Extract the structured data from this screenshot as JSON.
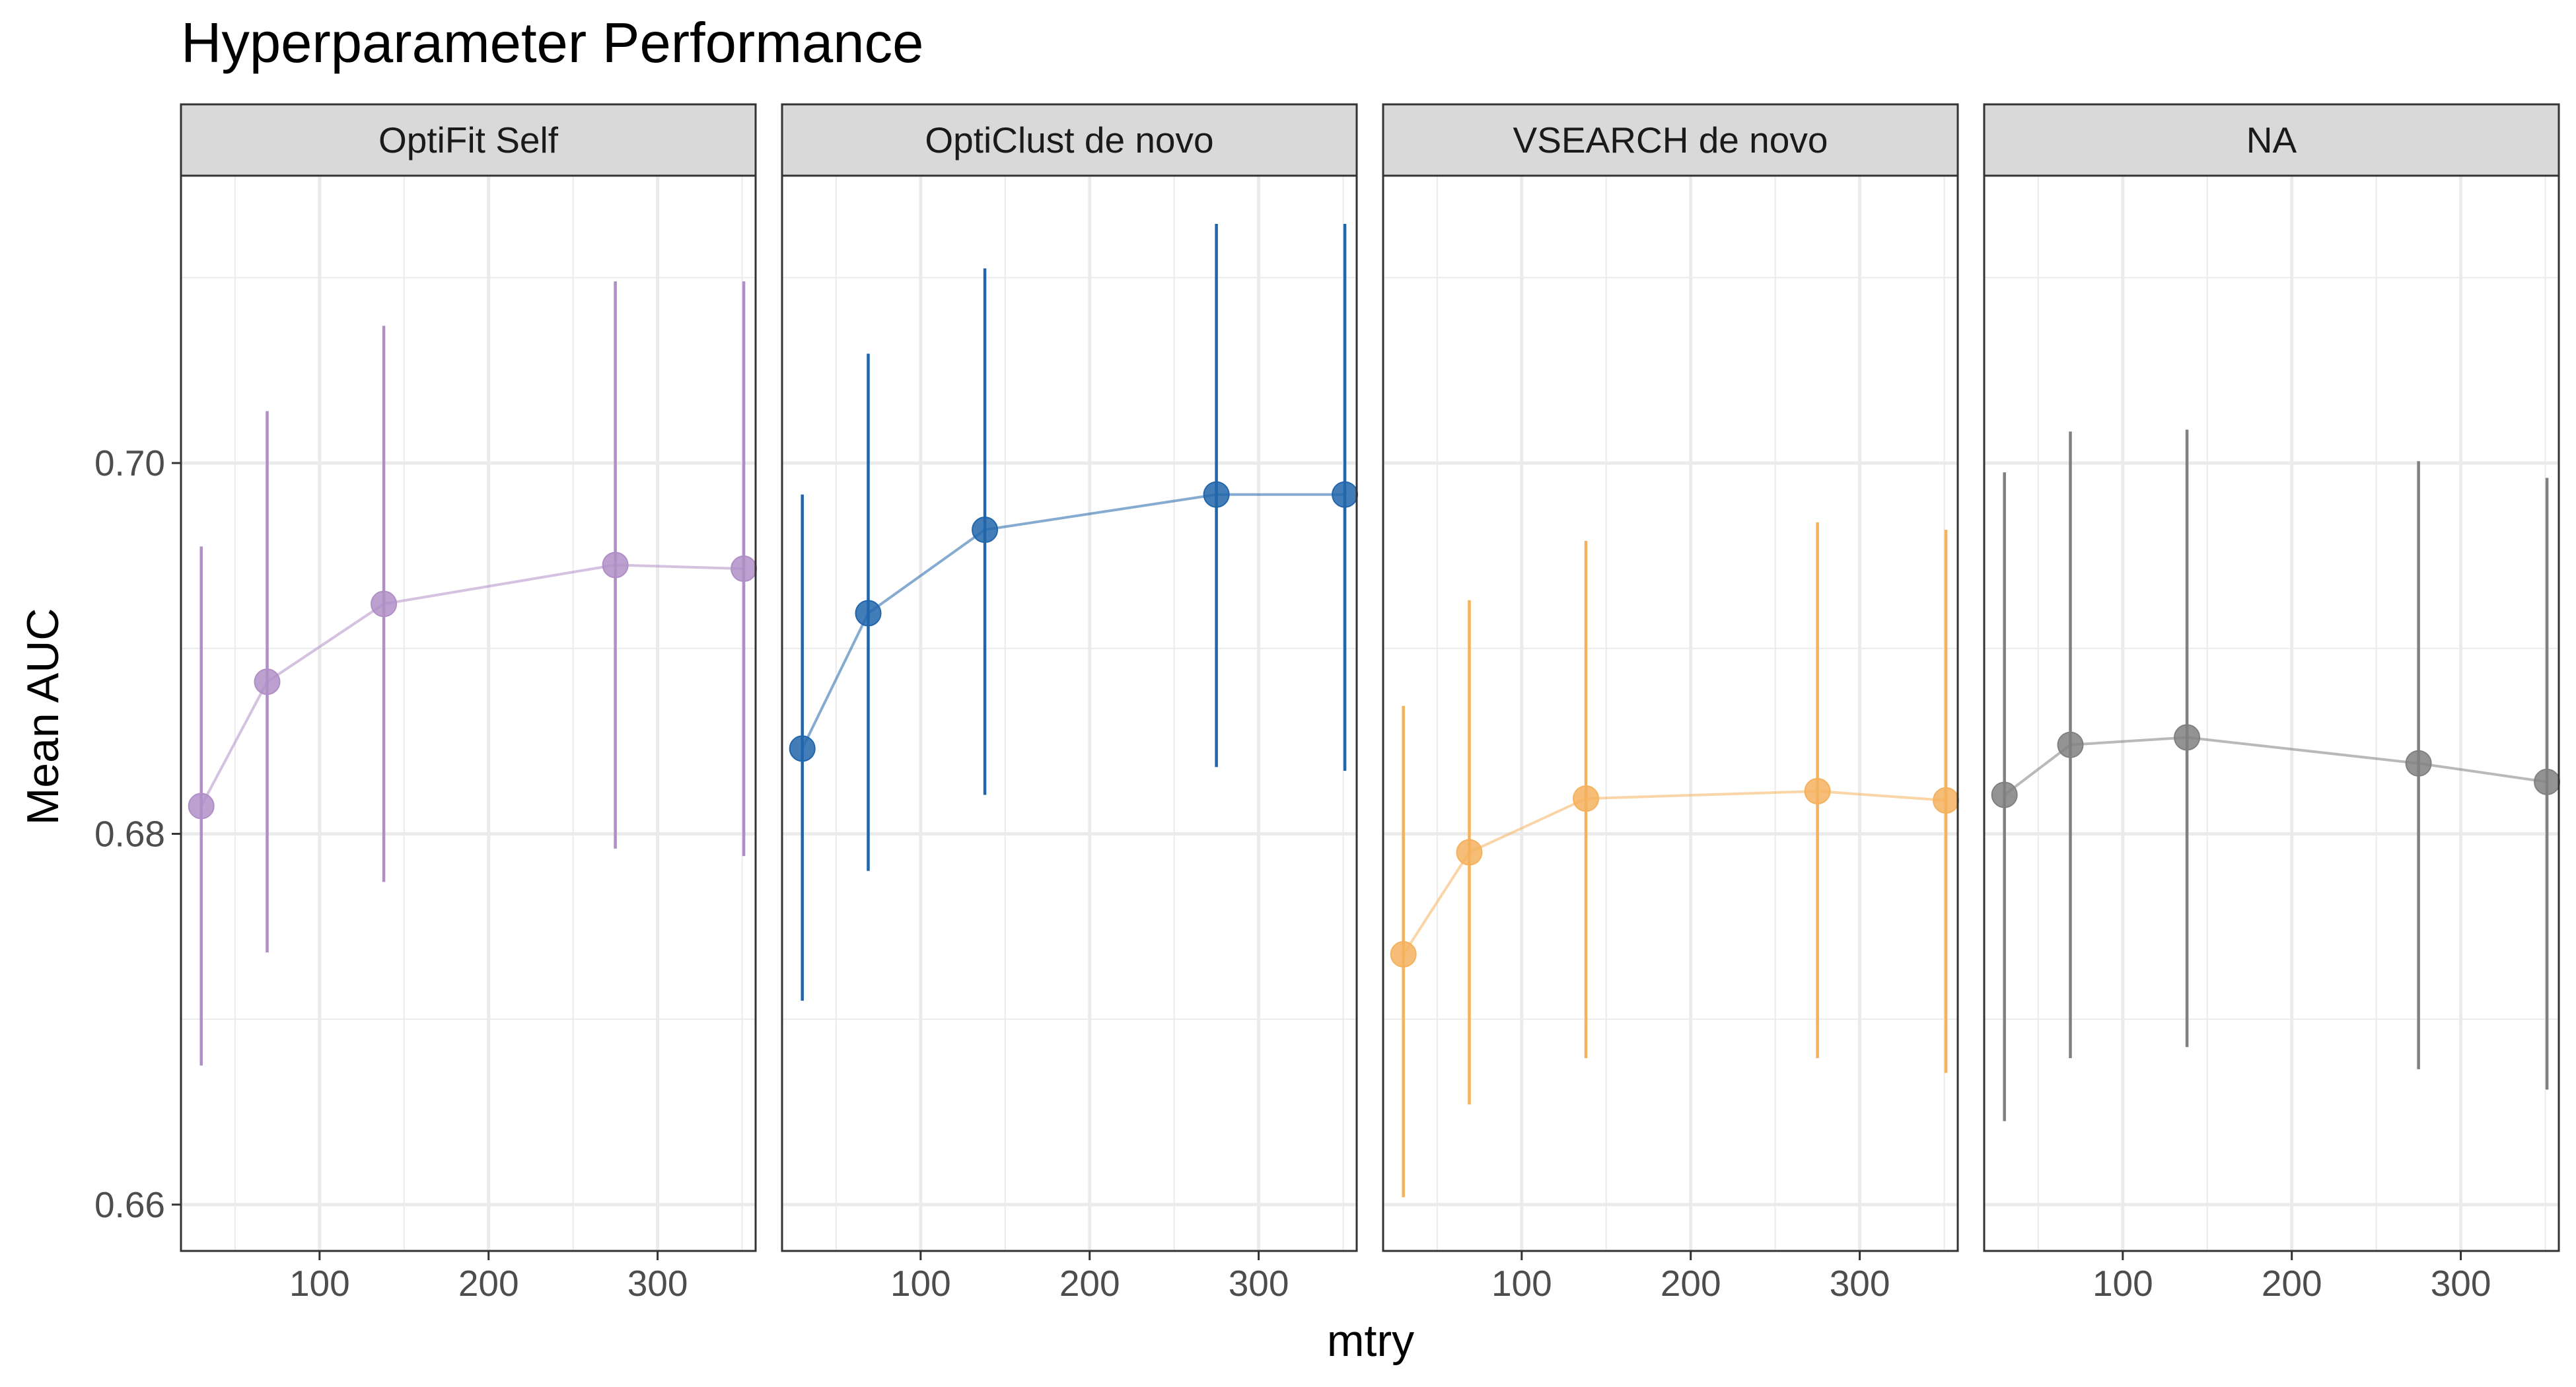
{
  "chart_data": {
    "type": "line",
    "title": "Hyperparameter Performance",
    "xlabel": "mtry",
    "ylabel": "Mean AUC",
    "xlim": [
      18,
      358
    ],
    "ylim": [
      0.6575,
      0.7155
    ],
    "x_ticks": [
      100,
      200,
      300
    ],
    "x_tick_labels": [
      "100",
      "200",
      "300"
    ],
    "y_ticks": [
      0.66,
      0.68,
      0.7
    ],
    "y_tick_labels": [
      "0.66",
      "0.68",
      "0.70"
    ],
    "grid": true,
    "legend": "none",
    "x": [
      30,
      69,
      138,
      275,
      351
    ],
    "panels": [
      {
        "label": "OptiFit Self",
        "color": "#b08fc7",
        "mean": [
          0.6815,
          0.6882,
          0.6924,
          0.6945,
          0.6943
        ],
        "lower": [
          0.6675,
          0.6736,
          0.6774,
          0.6792,
          0.6788
        ],
        "upper": [
          0.6955,
          0.7028,
          0.7074,
          0.7098,
          0.7098
        ]
      },
      {
        "label": "OptiClust de novo",
        "color": "#2166ac",
        "mean": [
          0.6846,
          0.6919,
          0.6964,
          0.6983,
          0.6983
        ],
        "lower": [
          0.671,
          0.678,
          0.6821,
          0.6836,
          0.6834
        ],
        "upper": [
          0.6983,
          0.7059,
          0.7105,
          0.7129,
          0.7129
        ]
      },
      {
        "label": "VSEARCH de novo",
        "color": "#f5b25e",
        "mean": [
          0.6735,
          0.679,
          0.6819,
          0.6823,
          0.6818
        ],
        "lower": [
          0.6604,
          0.6654,
          0.6679,
          0.6679,
          0.6671
        ],
        "upper": [
          0.6869,
          0.6926,
          0.6958,
          0.6968,
          0.6964
        ]
      },
      {
        "label": "NA",
        "color": "#808080",
        "mean": [
          0.6821,
          0.6848,
          0.6852,
          0.6838,
          0.6828
        ],
        "lower": [
          0.6645,
          0.6679,
          0.6685,
          0.6673,
          0.6662
        ],
        "upper": [
          0.6995,
          0.7017,
          0.7018,
          0.7001,
          0.6992
        ]
      }
    ]
  }
}
